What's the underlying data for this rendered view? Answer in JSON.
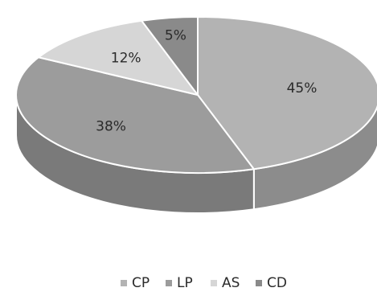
{
  "chart_data": {
    "type": "pie",
    "categories": [
      "CP",
      "LP",
      "AS",
      "CD"
    ],
    "values": [
      45,
      38,
      12,
      5
    ],
    "labels": [
      "45%",
      "38%",
      "12%",
      "5%"
    ],
    "colors": {
      "CP": "#b3b3b3",
      "LP": "#9c9c9c",
      "AS": "#d6d6d6",
      "CD": "#8a8a8a"
    },
    "legend": {
      "position": "bottom",
      "items": [
        {
          "name": "CP",
          "color": "#b3b3b3"
        },
        {
          "name": "LP",
          "color": "#9c9c9c"
        },
        {
          "name": "AS",
          "color": "#d6d6d6"
        },
        {
          "name": "CD",
          "color": "#8a8a8a"
        }
      ]
    },
    "style": "3d"
  }
}
